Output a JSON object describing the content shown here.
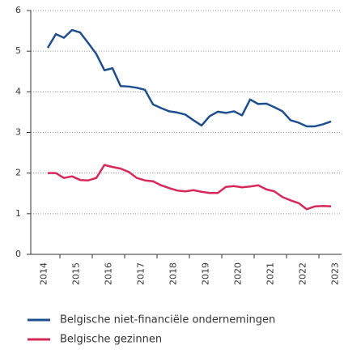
{
  "chart_data": {
    "type": "line",
    "x": [
      2014.625,
      2014.875,
      2015.125,
      2015.375,
      2015.625,
      2015.875,
      2016.125,
      2016.375,
      2016.625,
      2016.875,
      2017.125,
      2017.375,
      2017.625,
      2017.875,
      2018.125,
      2018.375,
      2018.625,
      2018.875,
      2019.125,
      2019.375,
      2019.625,
      2019.875,
      2020.125,
      2020.375,
      2020.625,
      2020.875,
      2021.125,
      2021.375,
      2021.625,
      2021.875,
      2022.125,
      2022.375,
      2022.625,
      2022.875,
      2023.125,
      2023.375
    ],
    "series": [
      {
        "name": "Belgische niet-financiële ondernemingen",
        "color": "#1f4e8c",
        "values": [
          5.08,
          5.42,
          5.33,
          5.52,
          5.46,
          5.2,
          4.93,
          4.53,
          4.58,
          4.14,
          4.13,
          4.1,
          4.05,
          3.69,
          3.6,
          3.52,
          3.49,
          3.44,
          3.3,
          3.17,
          3.4,
          3.51,
          3.48,
          3.52,
          3.42,
          3.81,
          3.7,
          3.71,
          3.62,
          3.52,
          3.3,
          3.24,
          3.15,
          3.15,
          3.2,
          3.27
        ]
      },
      {
        "name": "Belgische gezinnen",
        "color": "#d6285a",
        "values": [
          2.0,
          2.0,
          1.88,
          1.92,
          1.83,
          1.82,
          1.88,
          2.2,
          2.15,
          2.11,
          2.03,
          1.88,
          1.82,
          1.8,
          1.7,
          1.63,
          1.57,
          1.55,
          1.58,
          1.54,
          1.51,
          1.51,
          1.66,
          1.68,
          1.65,
          1.67,
          1.7,
          1.6,
          1.55,
          1.41,
          1.33,
          1.26,
          1.11,
          1.18,
          1.19,
          1.18
        ]
      }
    ],
    "xlim": [
      2014.1,
      2023.7
    ],
    "xticks": [
      2014,
      2015,
      2016,
      2017,
      2018,
      2019,
      2020,
      2021,
      2022,
      2023
    ],
    "ylim": [
      0,
      6
    ],
    "yticks": [
      0,
      1,
      2,
      3,
      4,
      5,
      6
    ],
    "grid": true
  }
}
